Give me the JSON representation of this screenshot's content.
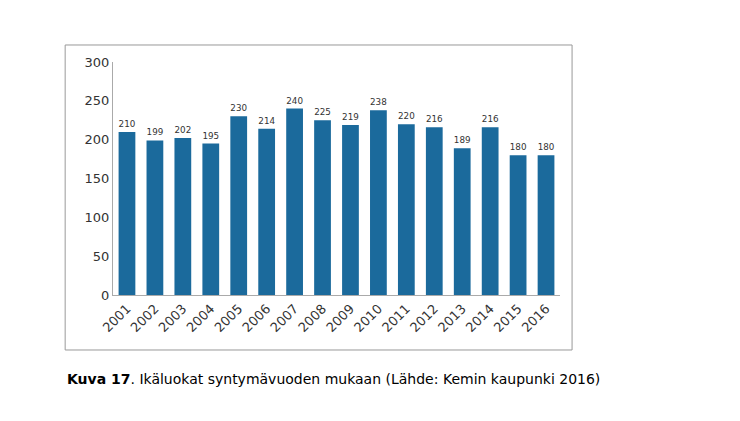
{
  "chart_data": {
    "type": "bar",
    "categories": [
      "2001",
      "2002",
      "2003",
      "2004",
      "2005",
      "2006",
      "2007",
      "2008",
      "2009",
      "2010",
      "2011",
      "2012",
      "2013",
      "2014",
      "2015",
      "2016"
    ],
    "values": [
      210,
      199,
      202,
      195,
      230,
      214,
      240,
      225,
      219,
      238,
      220,
      216,
      189,
      216,
      180,
      180
    ],
    "color": "#1b6a9c",
    "ylim": [
      0,
      300
    ],
    "yticks": [
      0,
      50,
      100,
      150,
      200,
      250,
      300
    ],
    "grid": false,
    "data_labels": true,
    "caption": [
      "Kuva 17",
      ". Ikäluokat syntymävuoden mukaan (Lähde: Kemin kaupunki 2016)"
    ]
  }
}
